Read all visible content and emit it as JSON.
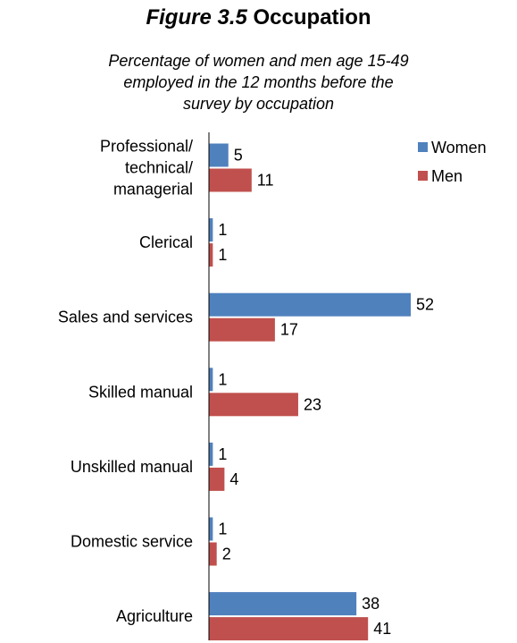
{
  "header": {
    "figure_label": "Figure 3.5",
    "title": "Occupation",
    "subtitle_lines": [
      "Percentage of women and men age 15-49",
      "employed in the 12 months before the",
      "survey by occupation"
    ]
  },
  "colors": {
    "women": "#4f81bd",
    "men": "#c0504d",
    "axis": "#000000"
  },
  "chart_data": {
    "type": "bar",
    "orientation": "horizontal",
    "title": "Figure 3.5 Occupation",
    "subtitle": "Percentage of women and men age 15-49 employed in the 12 months before the survey by occupation",
    "categories": [
      [
        "Professional/",
        "technical/",
        "managerial"
      ],
      [
        "Clerical"
      ],
      [
        "Sales and services"
      ],
      [
        "Skilled manual"
      ],
      [
        "Unskilled manual"
      ],
      [
        "Domestic service"
      ],
      [
        "Agriculture"
      ]
    ],
    "series": [
      {
        "name": "Women",
        "values": [
          5,
          1,
          52,
          1,
          1,
          1,
          38
        ]
      },
      {
        "name": "Men",
        "values": [
          11,
          1,
          17,
          23,
          4,
          2,
          41
        ]
      }
    ],
    "xlim": [
      0,
      52
    ],
    "data_labels": true,
    "grid": false,
    "legend": "top-right"
  }
}
